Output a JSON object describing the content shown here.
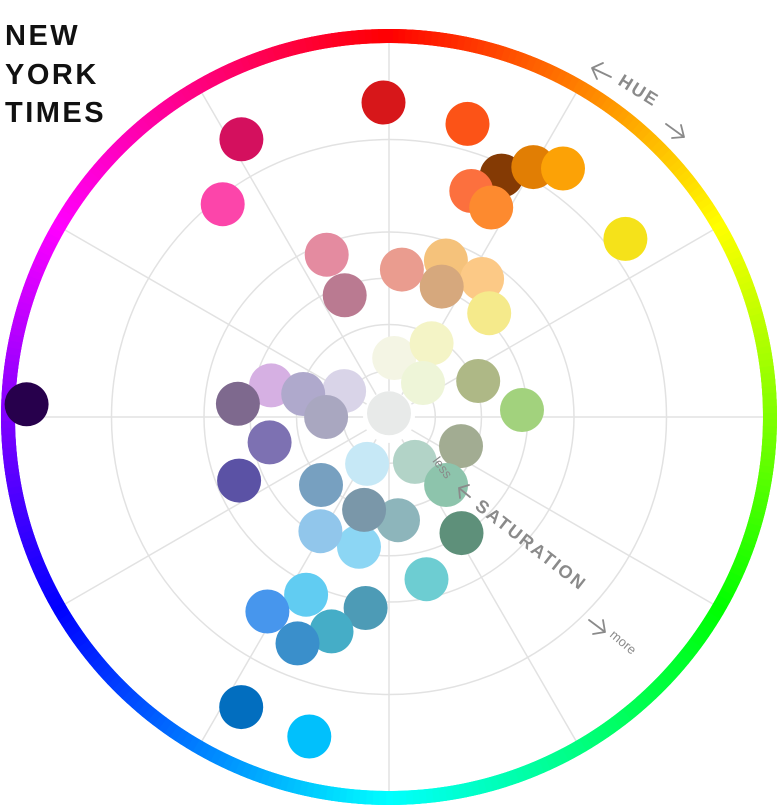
{
  "title_lines": [
    "NEW",
    "YORK",
    "TIMES"
  ],
  "hue_label": "HUE",
  "saturation_label": "SATURATION",
  "less_label": "less",
  "more_label": "more",
  "colors": [
    {
      "name": "crimson",
      "color": "#D7171A",
      "hue": 359,
      "saturation": 0.85
    },
    {
      "name": "rose",
      "color": "#D4105E",
      "hue": 332,
      "saturation": 0.85
    },
    {
      "name": "pink",
      "color": "#FC45AA",
      "hue": 322,
      "saturation": 0.73
    },
    {
      "name": "orange-red",
      "color": "#FC5317",
      "hue": 15,
      "saturation": 0.82
    },
    {
      "name": "brown",
      "color": "#843A04",
      "hue": 25,
      "saturation": 0.72
    },
    {
      "name": "amber",
      "color": "#E17E04",
      "hue": 30,
      "saturation": 0.78
    },
    {
      "name": "orange",
      "color": "#FCA206",
      "hue": 35,
      "saturation": 0.82
    },
    {
      "name": "coral",
      "color": "#FC703E",
      "hue": 20,
      "saturation": 0.65
    },
    {
      "name": "tangerine",
      "color": "#FD8A2F",
      "hue": 26,
      "saturation": 0.63
    },
    {
      "name": "yellow",
      "color": "#F5E21A",
      "hue": 53,
      "saturation": 0.8
    },
    {
      "name": "peach",
      "color": "#F5C27B",
      "hue": 20,
      "saturation": 0.45
    },
    {
      "name": "light-orange",
      "color": "#FCC986",
      "hue": 34,
      "saturation": 0.45
    },
    {
      "name": "tan",
      "color": "#D6A87D",
      "hue": 22,
      "saturation": 0.38
    },
    {
      "name": "light-yellow",
      "color": "#F5EA8B",
      "hue": 44,
      "saturation": 0.39
    },
    {
      "name": "light-pink",
      "color": "#E48BA0",
      "hue": 339,
      "saturation": 0.47
    },
    {
      "name": "salmon",
      "color": "#EA9C8F",
      "hue": 5,
      "saturation": 0.4
    },
    {
      "name": "mauve",
      "color": "#BA7A91",
      "hue": 340,
      "saturation": 0.35
    },
    {
      "name": "cream",
      "color": "#F4F5E4",
      "hue": 5,
      "saturation": 0.16
    },
    {
      "name": "pale-yellow",
      "color": "#F4F4C6",
      "hue": 30,
      "saturation": 0.23
    },
    {
      "name": "light-cream",
      "color": "#EEF5D8",
      "hue": 45,
      "saturation": 0.13
    },
    {
      "name": "olive",
      "color": "#AEB886",
      "hue": 68,
      "saturation": 0.26
    },
    {
      "name": "light-green",
      "color": "#A2D27D",
      "hue": 87,
      "saturation": 0.36
    },
    {
      "name": "sage",
      "color": "#A2AC92",
      "hue": 112,
      "saturation": 0.21
    },
    {
      "name": "off-white",
      "color": "#E8EAE9",
      "hue": 0,
      "saturation": 0.01
    },
    {
      "name": "light-mint",
      "color": "#B2D3C7",
      "hue": 150,
      "saturation": 0.14
    },
    {
      "name": "mint",
      "color": "#8DC4AC",
      "hue": 140,
      "saturation": 0.24
    },
    {
      "name": "dark-green",
      "color": "#5E907A",
      "hue": 148,
      "saturation": 0.37
    },
    {
      "name": "slate-teal",
      "color": "#8DB5BB",
      "hue": 175,
      "saturation": 0.28
    },
    {
      "name": "teal",
      "color": "#6DCDD2",
      "hue": 167,
      "saturation": 0.45
    },
    {
      "name": "steel-teal",
      "color": "#4D9BB6",
      "hue": 187,
      "saturation": 0.52
    },
    {
      "name": "pale-sky",
      "color": "#C6E8F6",
      "hue": 205,
      "saturation": 0.14
    },
    {
      "name": "sky",
      "color": "#8CD6F4",
      "hue": 193,
      "saturation": 0.36
    },
    {
      "name": "light-blue",
      "color": "#91C6EB",
      "hue": 211,
      "saturation": 0.36
    },
    {
      "name": "slate-blue",
      "color": "#7A97A9",
      "hue": 195,
      "saturation": 0.26
    },
    {
      "name": "steel-blue",
      "color": "#77A0C0",
      "hue": 225,
      "saturation": 0.26
    },
    {
      "name": "cyan-blue",
      "color": "#61CCF2",
      "hue": 205,
      "saturation": 0.53
    },
    {
      "name": "ocean",
      "color": "#45ADC7",
      "hue": 195,
      "saturation": 0.6
    },
    {
      "name": "azure",
      "color": "#4796ED",
      "hue": 212,
      "saturation": 0.62
    },
    {
      "name": "medium-blue",
      "color": "#3A8FCB",
      "hue": 202,
      "saturation": 0.66
    },
    {
      "name": "royal-blue",
      "color": "#026EBF",
      "hue": 207,
      "saturation": 0.88
    },
    {
      "name": "bright-cyan",
      "color": "#01C0FC",
      "hue": 194,
      "saturation": 0.89
    },
    {
      "name": "lavender",
      "color": "#D6B0E3",
      "hue": 285,
      "saturation": 0.33
    },
    {
      "name": "pale-lavender",
      "color": "#D9D4E8",
      "hue": 300,
      "saturation": 0.14
    },
    {
      "name": "grey-purple",
      "color": "#7E698E",
      "hue": 275,
      "saturation": 0.41
    },
    {
      "name": "light-purple",
      "color": "#AFA9CC",
      "hue": 285,
      "saturation": 0.24
    },
    {
      "name": "grey-lavender",
      "color": "#A9A7C0",
      "hue": 270,
      "saturation": 0.17
    },
    {
      "name": "periwinkle",
      "color": "#7D71B2",
      "hue": 258,
      "saturation": 0.33
    },
    {
      "name": "indigo",
      "color": "#5B52A5",
      "hue": 247,
      "saturation": 0.44
    },
    {
      "name": "eggplant",
      "color": "#27004C",
      "hue": 272,
      "saturation": 0.98
    }
  ]
}
